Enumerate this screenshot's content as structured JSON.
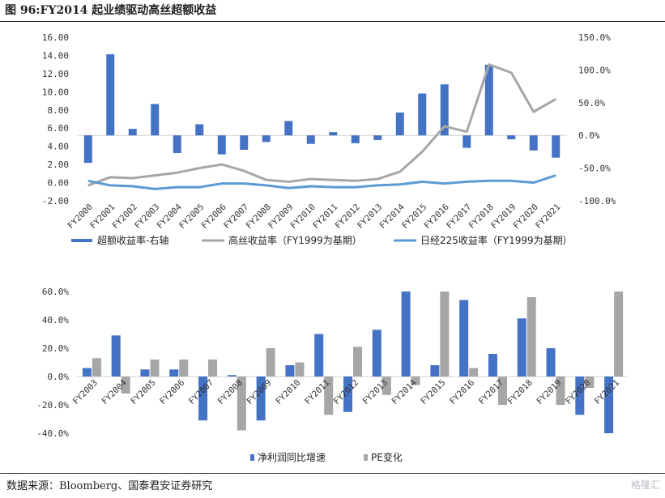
{
  "title": "图 96:FY2014 起业绩驱动高丝超额收益",
  "source": "数据来源：Bloomberg、国泰君安证券研究",
  "watermark": "格隆汇",
  "colors": {
    "bar_primary": "#4472C4",
    "bar_secondary": "#A6A6A6",
    "line_gray": "#A6A6A6",
    "line_blue": "#5B9BD5"
  },
  "chart_data": [
    {
      "type": "bar+line",
      "categories": [
        "FY2000",
        "FY2001",
        "FY2002",
        "FY2003",
        "FY2004",
        "FY2005",
        "FY2006",
        "FY2007",
        "FY2008",
        "FY2009",
        "FY2010",
        "FY2011",
        "FY2012",
        "FY2013",
        "FY2014",
        "FY2015",
        "FY2016",
        "FY2017",
        "FY2018",
        "FY2019",
        "FY2020",
        "FY2021"
      ],
      "left_axis": {
        "ticks": [
          "16.00",
          "14.00",
          "12.00",
          "10.00",
          "8.00",
          "6.00",
          "4.00",
          "2.00",
          "0.00",
          "-2.00"
        ],
        "range": [
          -2,
          16
        ]
      },
      "right_axis": {
        "ticks": [
          "150.0%",
          "100.0%",
          "50.0%",
          "0.0%",
          "-50.0%",
          "-100.0%"
        ],
        "range": [
          -100,
          150
        ]
      },
      "series": [
        {
          "name": "超额收益率-右轴",
          "type": "bar",
          "axis": "right",
          "values": [
            -42,
            124,
            10,
            48,
            -27,
            17,
            -29,
            -22,
            -10,
            22,
            -13,
            5,
            -12,
            -7,
            35,
            64,
            78,
            -19,
            108,
            -6,
            -23,
            -34
          ]
        },
        {
          "name": "高丝收益率（FY1999为基期）",
          "type": "line",
          "axis": "left",
          "values": [
            -0.3,
            0.6,
            0.5,
            0.8,
            1.1,
            1.6,
            2.0,
            1.3,
            0.3,
            0.1,
            0.4,
            0.3,
            0.2,
            0.4,
            1.2,
            3.4,
            6.2,
            5.6,
            13.0,
            12.1,
            7.8,
            9.2
          ]
        },
        {
          "name": "日经225收益率（FY1999为基期）",
          "type": "line",
          "axis": "left",
          "values": [
            0.2,
            -0.3,
            -0.4,
            -0.7,
            -0.5,
            -0.5,
            -0.1,
            -0.1,
            -0.3,
            -0.6,
            -0.4,
            -0.5,
            -0.5,
            -0.3,
            -0.2,
            0.1,
            -0.1,
            0.1,
            0.2,
            0.2,
            0.0,
            0.8
          ]
        }
      ]
    },
    {
      "type": "bar",
      "categories": [
        "FY2003",
        "FY2004",
        "FY2005",
        "FY2006",
        "FY2007",
        "FY2008",
        "FY2009",
        "FY2010",
        "FY2011",
        "FY2012",
        "FY2013",
        "FY2014",
        "FY2015",
        "FY2016",
        "FY2017",
        "FY2018",
        "FY2019",
        "FY2020",
        "FY2021"
      ],
      "axis": {
        "ticks": [
          "60.0%",
          "40.0%",
          "20.0%",
          "0.0%",
          "-20.0%",
          "-40.0%"
        ],
        "range": [
          -40,
          60
        ]
      },
      "series": [
        {
          "name": "净利润同比增速",
          "values": [
            6,
            29,
            5,
            5,
            -31,
            1,
            -31,
            8,
            30,
            -25,
            33,
            60,
            8,
            54,
            16,
            41,
            20,
            -27,
            -40
          ]
        },
        {
          "name": "PE变化",
          "values": [
            13,
            -12,
            12,
            12,
            12,
            -38,
            20,
            10,
            -27,
            21,
            -13,
            -6,
            60,
            6,
            -20,
            56,
            -20,
            -8,
            60
          ]
        }
      ]
    }
  ]
}
